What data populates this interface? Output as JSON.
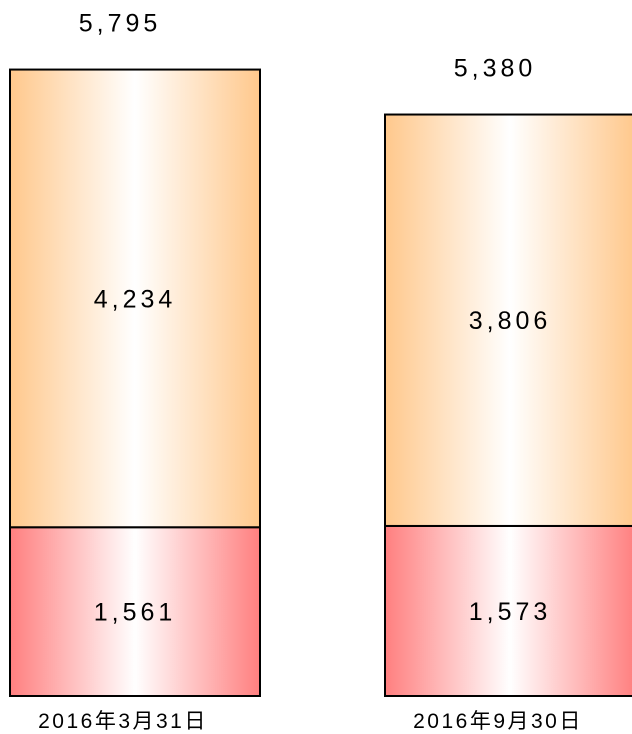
{
  "chart_data": {
    "type": "bar",
    "stacked": true,
    "categories": [
      "2016年3月31日",
      "2016年9月30日"
    ],
    "series": [
      {
        "values": [
          1561,
          1573
        ],
        "value_labels": [
          "1,561",
          "1,573"
        ],
        "color": "#ff7f7f"
      },
      {
        "values": [
          4234,
          3806
        ],
        "value_labels": [
          "4,234",
          "3,806"
        ],
        "color": "#ffc88c"
      }
    ],
    "totals": [
      5795,
      5380
    ],
    "total_labels": [
      "5,795",
      "5,380"
    ],
    "xlabel": "",
    "ylabel": "",
    "grid": false,
    "legend": "none"
  }
}
